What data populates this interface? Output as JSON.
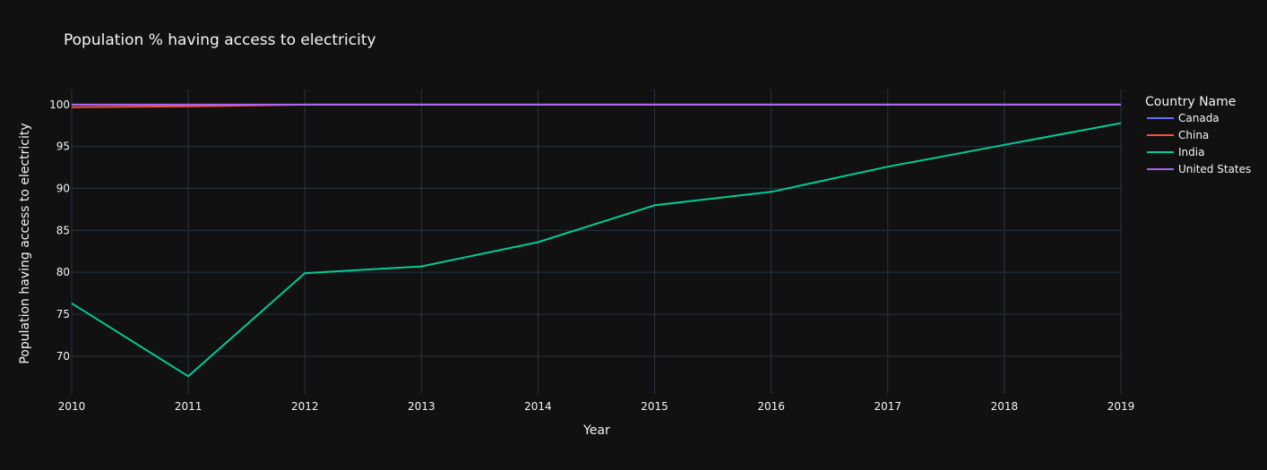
{
  "chart_data": {
    "type": "line",
    "title": "Population % having access to electricity",
    "xlabel": "Year",
    "ylabel": "Population having access to electricity",
    "x": [
      2010,
      2011,
      2012,
      2013,
      2014,
      2015,
      2016,
      2017,
      2018,
      2019
    ],
    "x_ticks": [
      "2010",
      "2011",
      "2012",
      "2013",
      "2014",
      "2015",
      "2016",
      "2017",
      "2018",
      "2019"
    ],
    "xlim": [
      2010,
      2019
    ],
    "y_ticks": [
      70,
      75,
      80,
      85,
      90,
      95,
      100
    ],
    "ylim": [
      65.5,
      101.8
    ],
    "grid": true,
    "legend": {
      "title": "Country Name",
      "placement": "right"
    },
    "series": [
      {
        "name": "Canada",
        "color": "#636efa",
        "values": [
          100,
          100,
          100,
          100,
          100,
          100,
          100,
          100,
          100,
          100
        ]
      },
      {
        "name": "China",
        "color": "#ef553b",
        "values": [
          99.7,
          99.8,
          100,
          100,
          100,
          100,
          100,
          100,
          100,
          100
        ]
      },
      {
        "name": "India",
        "color": "#00cc96",
        "values": [
          76.3,
          67.6,
          79.9,
          80.7,
          83.6,
          88.0,
          89.6,
          92.6,
          95.2,
          97.8
        ]
      },
      {
        "name": "United States",
        "color": "#ab63fa",
        "values": [
          100,
          100,
          100,
          100,
          100,
          100,
          100,
          100,
          100,
          100
        ]
      }
    ]
  }
}
